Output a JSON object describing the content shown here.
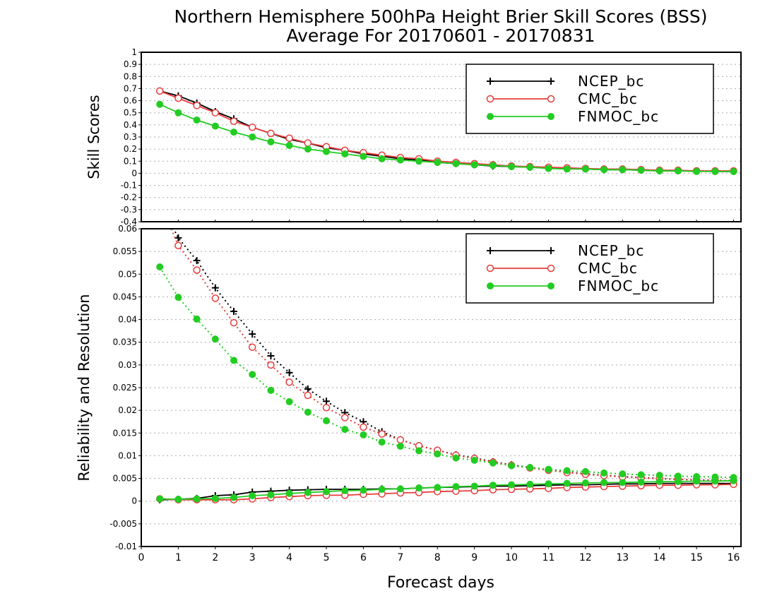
{
  "title_line1": "Northern Hemisphere 500hPa Height Brier Skill Scores (BSS)",
  "title_line2": "Average For 20170601 - 20170831",
  "colors": {
    "NCEP_bc": "#000000",
    "CMC_bc": "#e83c3c",
    "FNMOC_bc": "#22cc22"
  },
  "chart_data": [
    {
      "type": "line",
      "ylabel": "Skill Scores",
      "ylim": [
        -0.4,
        1
      ],
      "xlim": [
        0,
        16.2
      ],
      "y_ticks": [
        "-0.4",
        "-0.3",
        "-0.2",
        "-0.1",
        "0",
        "0.1",
        "0.2",
        "0.3",
        "0.4",
        "0.5",
        "0.6",
        "0.7",
        "0.8",
        "0.9",
        "1"
      ],
      "grid": true,
      "legend_position": "top-right",
      "legend": [
        "NCEP_bc",
        "CMC_bc",
        "FNMOC_bc"
      ],
      "x": [
        0.5,
        1,
        1.5,
        2,
        2.5,
        3,
        3.5,
        4,
        4.5,
        5,
        5.5,
        6,
        6.5,
        7,
        7.5,
        8,
        8.5,
        9,
        9.5,
        10,
        10.5,
        11,
        11.5,
        12,
        12.5,
        13,
        13.5,
        14,
        14.5,
        15,
        15.5,
        16
      ],
      "series": [
        {
          "name": "NCEP_bc",
          "marker": "plus",
          "line": "solid",
          "values": [
            0.68,
            0.64,
            0.58,
            0.51,
            0.45,
            0.38,
            0.33,
            0.28,
            0.25,
            0.21,
            0.19,
            0.16,
            0.14,
            0.12,
            0.11,
            0.09,
            0.08,
            0.07,
            0.06,
            0.055,
            0.05,
            0.045,
            0.04,
            0.035,
            0.03,
            0.03,
            0.025,
            0.02,
            0.02,
            0.02,
            0.015,
            0.015
          ]
        },
        {
          "name": "CMC_bc",
          "marker": "open-circle",
          "line": "solid",
          "values": [
            0.68,
            0.62,
            0.56,
            0.5,
            0.43,
            0.38,
            0.33,
            0.29,
            0.25,
            0.22,
            0.19,
            0.17,
            0.15,
            0.13,
            0.12,
            0.1,
            0.09,
            0.08,
            0.07,
            0.06,
            0.055,
            0.05,
            0.045,
            0.04,
            0.035,
            0.035,
            0.03,
            0.025,
            0.025,
            0.02,
            0.02,
            0.02
          ]
        },
        {
          "name": "FNMOC_bc",
          "marker": "filled-circle",
          "line": "solid",
          "values": [
            0.57,
            0.5,
            0.44,
            0.39,
            0.34,
            0.3,
            0.26,
            0.23,
            0.2,
            0.18,
            0.16,
            0.14,
            0.12,
            0.11,
            0.1,
            0.09,
            0.08,
            0.07,
            0.065,
            0.055,
            0.05,
            0.04,
            0.035,
            0.035,
            0.03,
            0.03,
            0.025,
            0.02,
            0.02,
            0.015,
            0.015,
            0.015
          ]
        }
      ]
    },
    {
      "type": "line",
      "ylabel": "Reliability and Resolution",
      "xlabel": "Forecast days",
      "ylim": [
        -0.01,
        0.06
      ],
      "xlim": [
        0,
        16.2
      ],
      "y_ticks": [
        "-0.01",
        "-0.005",
        "0",
        "0.005",
        "0.01",
        "0.015",
        "0.02",
        "0.025",
        "0.03",
        "0.035",
        "0.04",
        "0.045",
        "0.05",
        "0.055",
        "0.06"
      ],
      "x_ticks": [
        "0",
        "1",
        "2",
        "3",
        "4",
        "5",
        "6",
        "7",
        "8",
        "9",
        "10",
        "11",
        "12",
        "13",
        "14",
        "15",
        "16"
      ],
      "grid": true,
      "legend_position": "top-right",
      "legend": [
        "NCEP_bc",
        "CMC_bc",
        "FNMOC_bc"
      ],
      "x": [
        0.5,
        1,
        1.5,
        2,
        2.5,
        3,
        3.5,
        4,
        4.5,
        5,
        5.5,
        6,
        6.5,
        7,
        7.5,
        8,
        8.5,
        9,
        9.5,
        10,
        10.5,
        11,
        11.5,
        12,
        12.5,
        13,
        13.5,
        14,
        14.5,
        15,
        15.5,
        16
      ],
      "series": [
        {
          "name": "NCEP_bc",
          "marker": "plus",
          "line": "dotted",
          "kind": "reliability",
          "values": [
            0.066,
            0.058,
            0.053,
            0.047,
            0.0418,
            0.0368,
            0.032,
            0.0283,
            0.0247,
            0.022,
            0.0195,
            0.0175,
            0.0153,
            0.0135,
            0.0122,
            0.0112,
            0.0102,
            0.0095,
            0.0087,
            0.008,
            0.0074,
            0.0069,
            0.0064,
            0.006,
            0.0057,
            0.0054,
            0.0052,
            0.005,
            0.0048,
            0.0047,
            0.0046,
            0.0045
          ]
        },
        {
          "name": "CMC_bc",
          "marker": "open-circle",
          "line": "dotted",
          "kind": "reliability",
          "values": [
            0.066,
            0.0563,
            0.0509,
            0.0447,
            0.0393,
            0.0339,
            0.03,
            0.0262,
            0.0233,
            0.0206,
            0.0184,
            0.0163,
            0.0148,
            0.0135,
            0.0122,
            0.0112,
            0.0101,
            0.0094,
            0.0086,
            0.0079,
            0.0073,
            0.0068,
            0.0063,
            0.0059,
            0.0056,
            0.0053,
            0.0051,
            0.0049,
            0.0048,
            0.0047,
            0.0046,
            0.0045
          ]
        },
        {
          "name": "FNMOC_bc",
          "marker": "filled-circle",
          "line": "dotted",
          "kind": "reliability",
          "values": [
            0.0516,
            0.0449,
            0.0401,
            0.0357,
            0.031,
            0.0279,
            0.0244,
            0.0219,
            0.0196,
            0.0177,
            0.0158,
            0.0146,
            0.013,
            0.0121,
            0.0111,
            0.0104,
            0.0095,
            0.009,
            0.0084,
            0.0078,
            0.0074,
            0.007,
            0.0067,
            0.0065,
            0.0062,
            0.006,
            0.0058,
            0.0057,
            0.0055,
            0.0054,
            0.0053,
            0.0052
          ]
        },
        {
          "name": "NCEP_bc",
          "marker": "plus",
          "line": "solid",
          "kind": "resolution",
          "values": [
            0.0003,
            0.0004,
            0.0006,
            0.0012,
            0.0014,
            0.002,
            0.0022,
            0.0024,
            0.0025,
            0.0026,
            0.0026,
            0.0026,
            0.0027,
            0.0027,
            0.0029,
            0.003,
            0.0031,
            0.0032,
            0.0033,
            0.0033,
            0.0034,
            0.0035,
            0.0036,
            0.0036,
            0.0037,
            0.0038,
            0.0038,
            0.0039,
            0.0039,
            0.0039,
            0.0039,
            0.0039
          ]
        },
        {
          "name": "CMC_bc",
          "marker": "open-circle",
          "line": "solid",
          "kind": "resolution",
          "values": [
            0.0005,
            0.0003,
            0.0003,
            0.0003,
            0.0003,
            0.0005,
            0.0008,
            0.001,
            0.0012,
            0.0013,
            0.0013,
            0.0015,
            0.0016,
            0.0018,
            0.0019,
            0.0021,
            0.0022,
            0.0023,
            0.0025,
            0.0026,
            0.0027,
            0.0028,
            0.003,
            0.0031,
            0.0032,
            0.0033,
            0.0034,
            0.0035,
            0.0035,
            0.0036,
            0.0036,
            0.0037
          ]
        },
        {
          "name": "FNMOC_bc",
          "marker": "filled-circle",
          "line": "solid",
          "kind": "resolution",
          "values": [
            0.0005,
            0.0004,
            0.0005,
            0.0006,
            0.0008,
            0.0012,
            0.0014,
            0.0017,
            0.0019,
            0.0021,
            0.0023,
            0.0024,
            0.0026,
            0.0027,
            0.0029,
            0.003,
            0.0032,
            0.0033,
            0.0035,
            0.0036,
            0.0037,
            0.0038,
            0.0039,
            0.004,
            0.0041,
            0.0041,
            0.0042,
            0.0043,
            0.0043,
            0.0044,
            0.0044,
            0.0045
          ]
        }
      ]
    }
  ]
}
